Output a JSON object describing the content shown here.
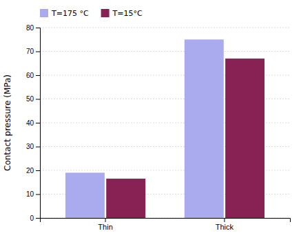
{
  "chart_data": {
    "type": "bar",
    "categories": [
      "Thin",
      "Thick"
    ],
    "series": [
      {
        "name": "T=175 °C",
        "color": "#aaaaee",
        "values": [
          19,
          75
        ]
      },
      {
        "name": "T=15°C",
        "color": "#882255",
        "values": [
          16.5,
          67
        ]
      }
    ],
    "ylabel": "Contact pressure (MPa)",
    "ylim": [
      0,
      80
    ],
    "yticks": [
      0,
      10,
      20,
      30,
      40,
      50,
      60,
      70,
      80
    ],
    "grid": true,
    "legend": "upper left"
  }
}
